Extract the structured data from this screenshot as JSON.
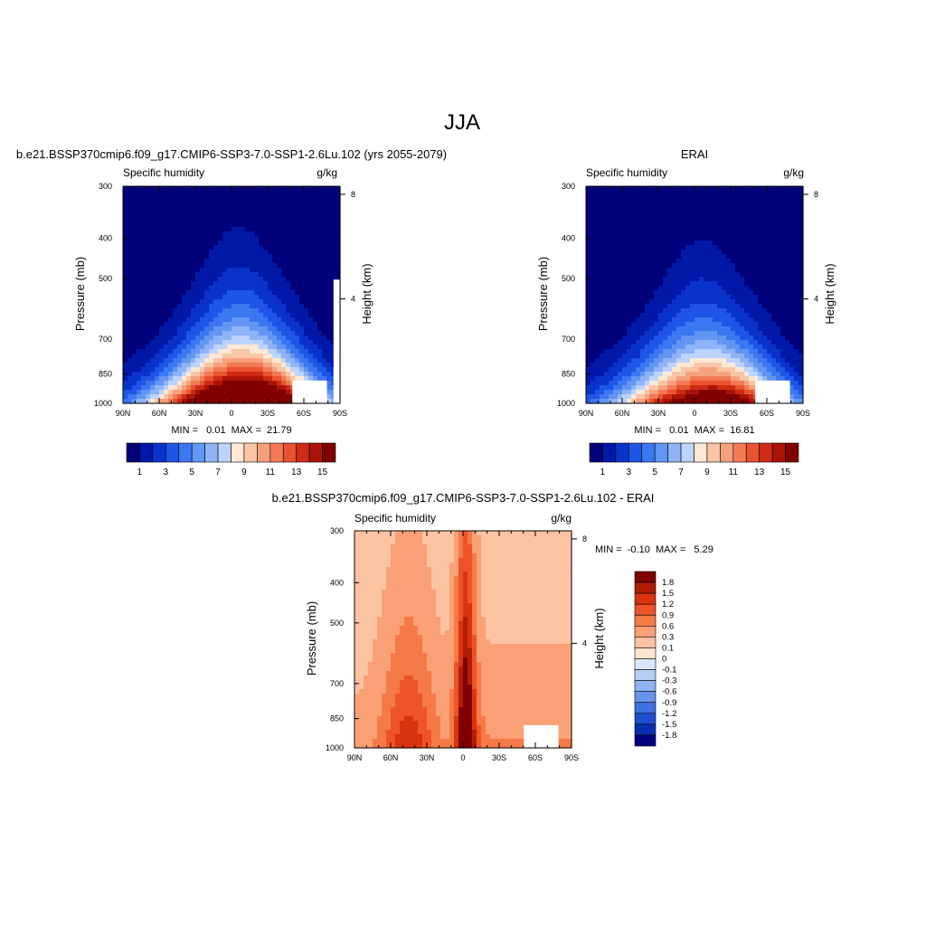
{
  "page_title": "JJA",
  "chart_data": [
    {
      "type": "heatmap",
      "title": "b.e21.BSSP370cmip6.f09_g17.CMIP6-SSP3-7.0-SSP1-2.6Lu.102 (yrs 2055-2079)",
      "variable": "Specific humidity",
      "units": "g/kg",
      "ylabel": "Pressure (mb)",
      "y2label": "Height (km)",
      "xticks": [
        "90N",
        "60N",
        "30N",
        "0",
        "30S",
        "60S",
        "90S"
      ],
      "yticks": [
        "300",
        "400",
        "500",
        "700",
        "850",
        "1000"
      ],
      "y2ticks": [
        "8",
        "4"
      ],
      "stats": "MIN =   0.01  MAX =  21.79",
      "min": 0.01,
      "max": 21.79,
      "peak_lat": -5,
      "colorbar_labels": [
        "1",
        "3",
        "5",
        "7",
        "9",
        "11",
        "13",
        "15"
      ]
    },
    {
      "type": "heatmap",
      "title": "ERAI",
      "variable": "Specific humidity",
      "units": "g/kg",
      "ylabel": "Pressure (mb)",
      "y2label": "Height (km)",
      "xticks": [
        "90N",
        "60N",
        "30N",
        "0",
        "30S",
        "60S",
        "90S"
      ],
      "yticks": [
        "300",
        "400",
        "500",
        "700",
        "850",
        "1000"
      ],
      "y2ticks": [
        "8",
        "4"
      ],
      "stats": "MIN =   0.01  MAX =  16.81",
      "min": 0.01,
      "max": 16.81,
      "peak_lat": -5,
      "colorbar_labels": [
        "1",
        "3",
        "5",
        "7",
        "9",
        "11",
        "13",
        "15"
      ]
    },
    {
      "type": "heatmap",
      "title": "b.e21.BSSP370cmip6.f09_g17.CMIP6-SSP3-7.0-SSP1-2.6Lu.102 - ERAI",
      "variable": "Specific humidity",
      "units": "g/kg",
      "ylabel": "Pressure (mb)",
      "y2label": "Height (km)",
      "xticks": [
        "90N",
        "60N",
        "30N",
        "0",
        "30S",
        "60S",
        "90S"
      ],
      "yticks": [
        "300",
        "400",
        "500",
        "700",
        "850",
        "1000"
      ],
      "y2ticks": [
        "8",
        "4"
      ],
      "stats": "MIN =  -0.10  MAX =   5.29",
      "min": -0.1,
      "max": 5.29,
      "colorbar_labels": [
        "1.8",
        "1.5",
        "1.2",
        "0.9",
        "0.6",
        "0.3",
        "0.1",
        "0",
        "-0.1",
        "-0.3",
        "-0.6",
        "-0.9",
        "-1.2",
        "-1.5",
        "-1.8"
      ]
    }
  ],
  "colors": {
    "abs_palette": [
      "#00007a",
      "#0018a8",
      "#0a33cc",
      "#1e55e6",
      "#3a77f0",
      "#6395f2",
      "#8fb3f6",
      "#bcd3fb",
      "#fde7d5",
      "#f9c5a6",
      "#f6a17e",
      "#f27a55",
      "#e9532f",
      "#cf2b14",
      "#ac1307",
      "#800000"
    ],
    "diff_palette": [
      "#800000",
      "#b01d08",
      "#d9340f",
      "#ee5427",
      "#f57a48",
      "#f9a076",
      "#fbc3a2",
      "#fde4cf",
      "#d8e6f8",
      "#b5cff5",
      "#8fb3f2",
      "#6895ec",
      "#3f71e1",
      "#1e4fd0",
      "#0a2fae",
      "#000080"
    ]
  }
}
